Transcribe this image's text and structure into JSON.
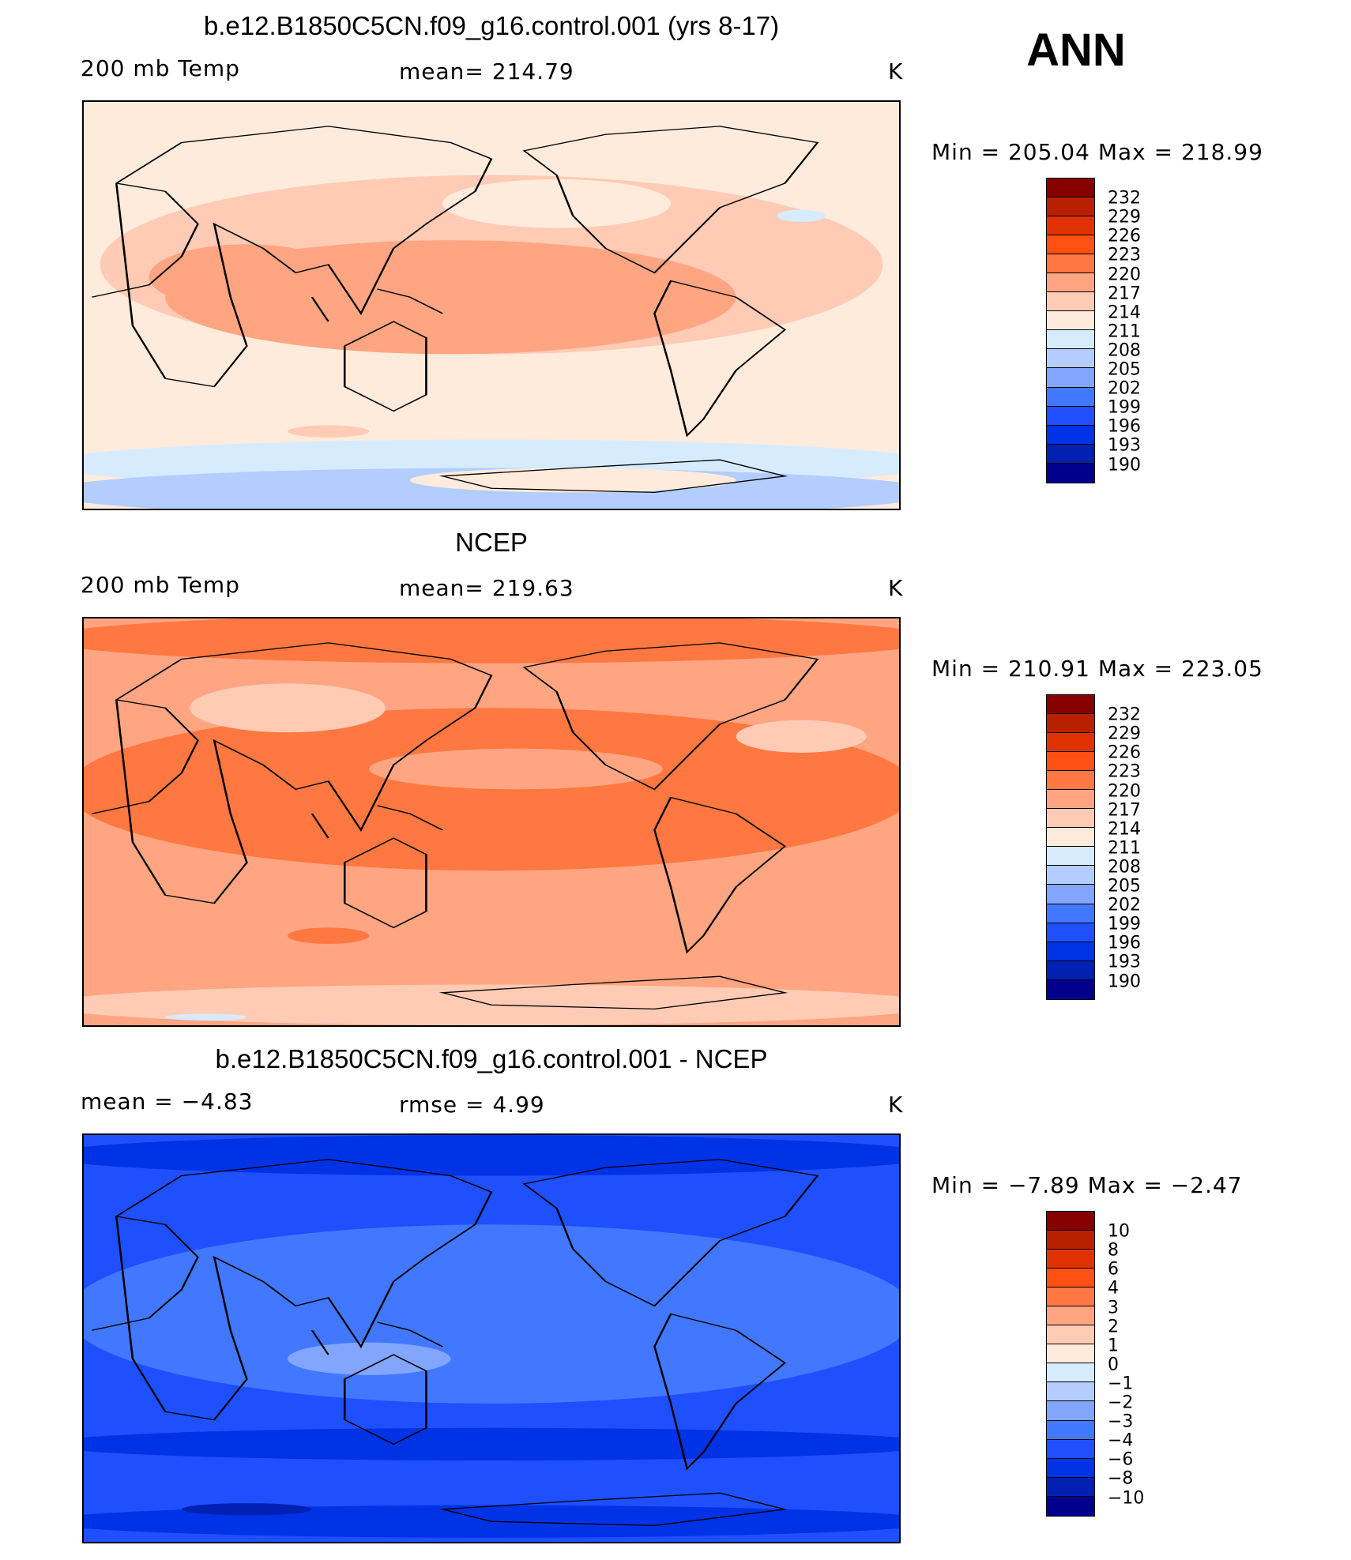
{
  "header": {
    "season": "ANN"
  },
  "chart_data": [
    {
      "type": "heatmap",
      "title": "b.e12.B1850C5CN.f09_g16.control.001 (yrs 8-17)",
      "left_label": "200 mb Temp",
      "center_label": "mean=  214.79",
      "units": "K",
      "minmax": "Min  =  205.04  Max  =  218.99",
      "mean": 214.79,
      "min": 205.04,
      "max": 218.99,
      "levels": [
        "232",
        "229",
        "226",
        "223",
        "220",
        "217",
        "214",
        "211",
        "208",
        "205",
        "202",
        "199",
        "196",
        "193",
        "190"
      ]
    },
    {
      "type": "heatmap",
      "title": "NCEP",
      "left_label": "200 mb Temp",
      "center_label": "mean=  219.63",
      "units": "K",
      "minmax": "Min  =  210.91  Max  =  223.05",
      "mean": 219.63,
      "min": 210.91,
      "max": 223.05,
      "levels": [
        "232",
        "229",
        "226",
        "223",
        "220",
        "217",
        "214",
        "211",
        "208",
        "205",
        "202",
        "199",
        "196",
        "193",
        "190"
      ]
    },
    {
      "type": "heatmap",
      "title": "b.e12.B1850C5CN.f09_g16.control.001 - NCEP",
      "left_label": "mean =    −4.83",
      "center_label": "rmse =     4.99",
      "units": "K",
      "minmax": "Min  =    −7.89  Max  =    −2.47",
      "mean": -4.83,
      "rmse": 4.99,
      "min": -7.89,
      "max": -2.47,
      "levels": [
        "10",
        "8",
        "6",
        "4",
        "3",
        "2",
        "1",
        "0",
        "−1",
        "−2",
        "−3",
        "−4",
        "−6",
        "−8",
        "−10"
      ]
    }
  ],
  "colors": [
    "#870000",
    "#B82000",
    "#E03200",
    "#FF5014",
    "#FF7841",
    "#FFA582",
    "#FFCBB4",
    "#FFEBDC",
    "#D7EBFF",
    "#B4CDFF",
    "#82A5FF",
    "#4178FF",
    "#1E50FF",
    "#0032E6",
    "#0020B4",
    "#00008C"
  ]
}
